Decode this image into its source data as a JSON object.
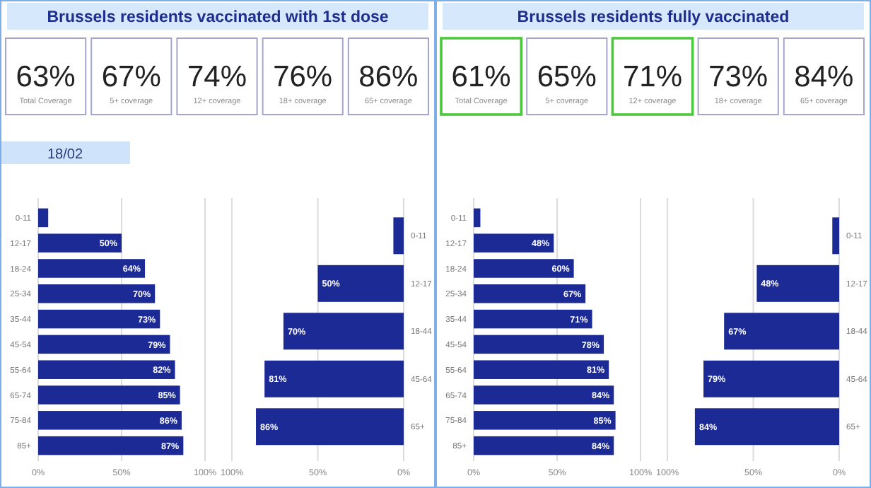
{
  "chart_data": [
    {
      "type": "other",
      "title": "Brussels residents vaccinated with 1st dose",
      "categories": [
        "Total Coverage",
        "5+ coverage",
        "12+ coverage",
        "18+ coverage",
        "65+ coverage"
      ],
      "value_labels": [
        "63%",
        "67%",
        "74%",
        "76%",
        "86%"
      ],
      "colors": [
        "#a4a4cc",
        "#a4a4cc",
        "#a4a4cc",
        "#a4a4cc",
        "#a4a4cc"
      ],
      "annotations": [
        "18/02"
      ]
    },
    {
      "type": "bar",
      "orientation": "horizontal",
      "categories": [
        "0-11",
        "12-17",
        "18-24",
        "25-34",
        "35-44",
        "45-54",
        "55-64",
        "65-74",
        "75-84",
        "85+"
      ],
      "values": [
        6,
        50,
        64,
        70,
        73,
        79,
        82,
        85,
        86,
        87
      ],
      "value_labels": [
        null,
        "50%",
        "64%",
        "70%",
        "73%",
        "79%",
        "82%",
        "85%",
        "86%",
        "87%"
      ],
      "color": "#1b2a94",
      "xlim": [
        0,
        100
      ],
      "xticks": [
        {
          "value": 0,
          "label": "0%"
        },
        {
          "value": 50,
          "label": "50%"
        },
        {
          "value": 100,
          "label": "100%"
        }
      ],
      "grid": "x"
    },
    {
      "type": "bar",
      "orientation": "horizontal",
      "categories": [
        "0-11",
        "12-17",
        "18-44",
        "45-64",
        "65+"
      ],
      "values": [
        6,
        50,
        70,
        81,
        86
      ],
      "value_labels": [
        null,
        "50%",
        "70%",
        "81%",
        "86%"
      ],
      "color": "#1b2a94",
      "xlim": [
        100,
        0
      ],
      "xticks": [
        {
          "value": 100,
          "label": "100%"
        },
        {
          "value": 50,
          "label": "50%"
        },
        {
          "value": 0,
          "label": "0%"
        }
      ],
      "grid": "x"
    },
    {
      "type": "other",
      "title": "Brussels residents fully vaccinated",
      "categories": [
        "Total Coverage",
        "5+ coverage",
        "12+ coverage",
        "18+ coverage",
        "65+ coverage"
      ],
      "value_labels": [
        "61%",
        "65%",
        "71%",
        "73%",
        "84%"
      ],
      "colors": [
        "#4cc83c",
        "#a4a4cc",
        "#4cc83c",
        "#a4a4cc",
        "#a4a4cc"
      ]
    },
    {
      "type": "bar",
      "orientation": "horizontal",
      "categories": [
        "0-11",
        "12-17",
        "18-24",
        "25-34",
        "35-44",
        "45-54",
        "55-64",
        "65-74",
        "75-84",
        "85+"
      ],
      "values": [
        4,
        48,
        60,
        67,
        71,
        78,
        81,
        84,
        85,
        84
      ],
      "value_labels": [
        null,
        "48%",
        "60%",
        "67%",
        "71%",
        "78%",
        "81%",
        "84%",
        "85%",
        "84%"
      ],
      "color": "#1b2a94",
      "xlim": [
        0,
        100
      ],
      "xticks": [
        {
          "value": 0,
          "label": "0%"
        },
        {
          "value": 50,
          "label": "50%"
        },
        {
          "value": 100,
          "label": "100%"
        }
      ],
      "grid": "x"
    },
    {
      "type": "bar",
      "orientation": "horizontal",
      "categories": [
        "0-11",
        "12-17",
        "18-44",
        "45-64",
        "65+"
      ],
      "values": [
        4,
        48,
        67,
        79,
        84
      ],
      "value_labels": [
        null,
        "48%",
        "67%",
        "79%",
        "84%"
      ],
      "color": "#1b2a94",
      "xlim": [
        100,
        0
      ],
      "xticks": [
        {
          "value": 100,
          "label": "100%"
        },
        {
          "value": 50,
          "label": "50%"
        },
        {
          "value": 0,
          "label": "0%"
        }
      ],
      "grid": "x"
    }
  ]
}
